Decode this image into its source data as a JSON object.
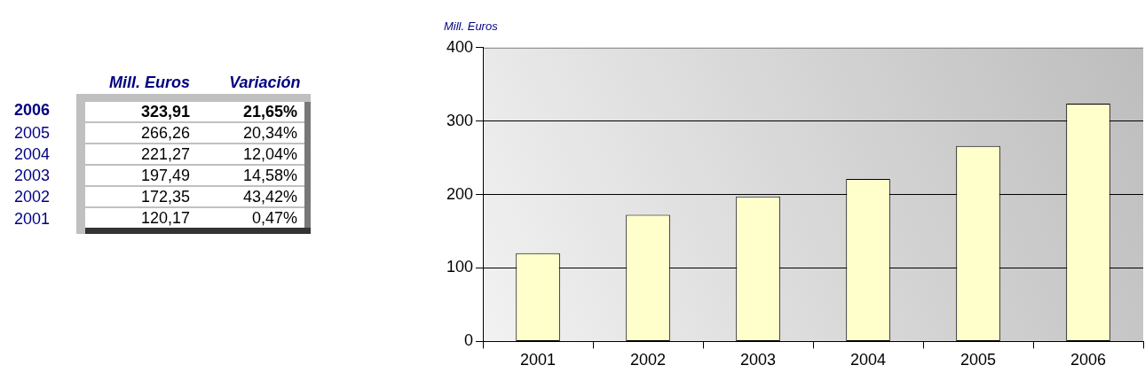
{
  "chart_data": {
    "type": "bar",
    "ylabel": "Mill. Euros",
    "categories": [
      "2001",
      "2002",
      "2003",
      "2004",
      "2005",
      "2006"
    ],
    "values": [
      120.17,
      172.35,
      197.49,
      221.27,
      266.26,
      323.91
    ],
    "color": "#ffffcc",
    "ylim": [
      0,
      400
    ],
    "yticks": [
      0,
      100,
      200,
      300,
      400
    ],
    "grid": "y",
    "legend": false,
    "annotations": [
      "Variación",
      "323,91",
      "21,65%",
      "266,26",
      "20,34%",
      "221,27",
      "12,04%",
      "197,49",
      "14,58%",
      "172,35",
      "43,42%",
      "120,17",
      "0,47%"
    ]
  }
}
